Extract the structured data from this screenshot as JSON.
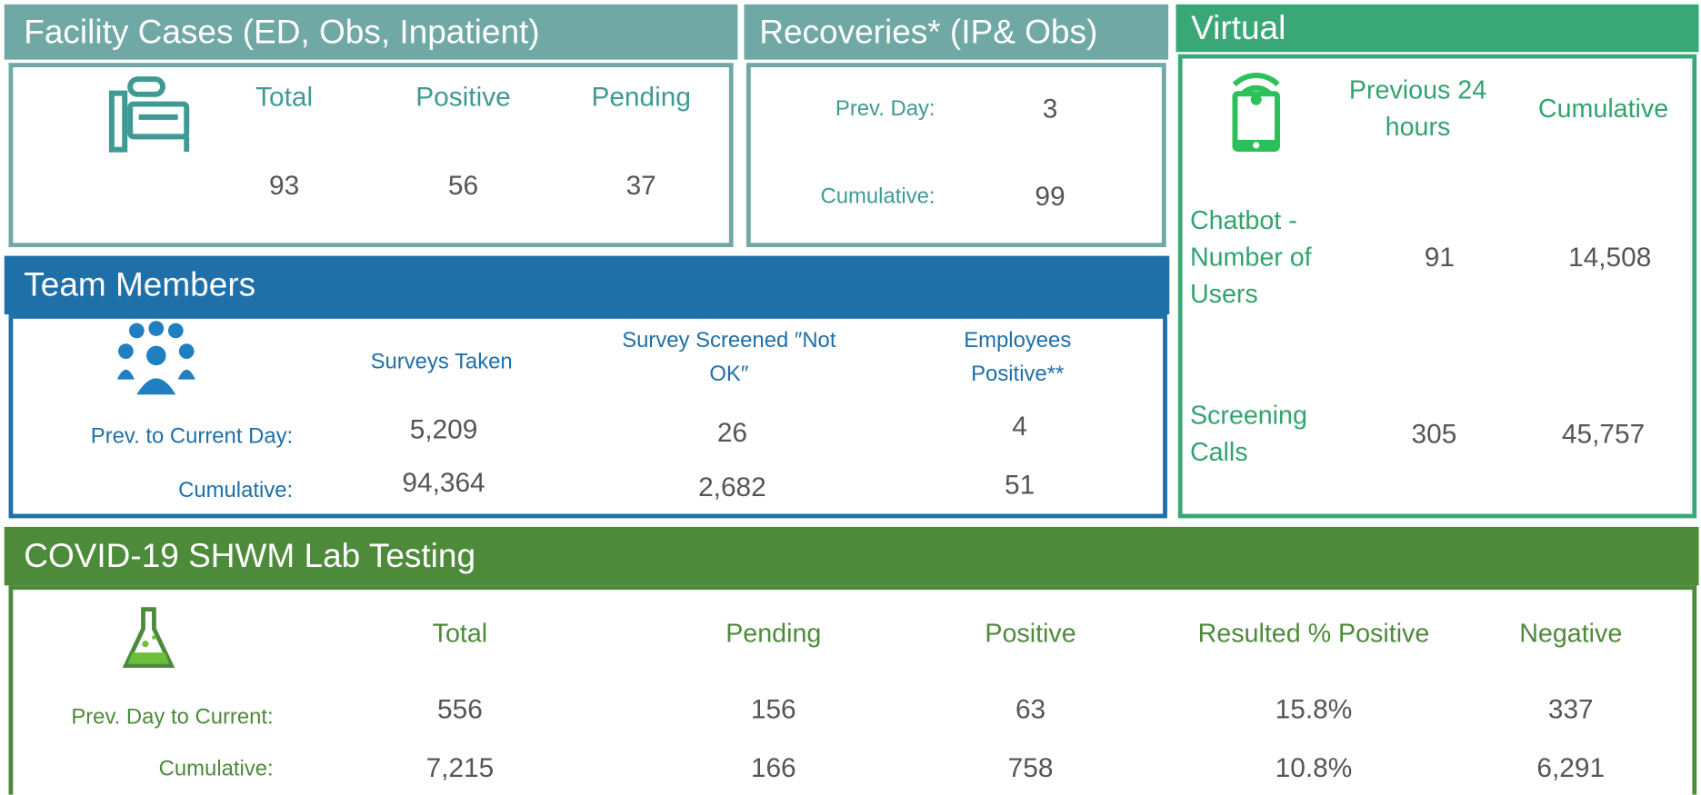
{
  "facility": {
    "title": "Facility Cases (ED, Obs, Inpatient)",
    "headers": [
      "Total",
      "Positive",
      "Pending"
    ],
    "values": [
      "93",
      "56",
      "37"
    ]
  },
  "recoveries": {
    "title": "Recoveries* (IP& Obs)",
    "rows": [
      {
        "label": "Prev. Day:",
        "value": "3"
      },
      {
        "label": "Cumulative:",
        "value": "99"
      }
    ]
  },
  "virtual": {
    "title": "Virtual",
    "headers": [
      "Previous 24 hours",
      "Cumulative"
    ],
    "rows": [
      {
        "label": "Chatbot - Number of Users",
        "values": [
          "91",
          "14,508"
        ]
      },
      {
        "label": "Screening Calls",
        "values": [
          "305",
          "45,757"
        ]
      }
    ]
  },
  "team": {
    "title": "Team Members",
    "headers": [
      "Surveys Taken",
      "Survey Screened ″Not OK″",
      "Employees Positive**"
    ],
    "rows": [
      {
        "label": "Prev. to Current Day:",
        "values": [
          "5,209",
          "26",
          "4"
        ]
      },
      {
        "label": "Cumulative:",
        "values": [
          "94,364",
          "2,682",
          "51"
        ]
      }
    ]
  },
  "lab": {
    "title": "COVID-19 SHWM Lab Testing",
    "headers": [
      "Total",
      "Pending",
      "Positive",
      "Resulted % Positive",
      "Negative"
    ],
    "rows": [
      {
        "label": "Prev. Day to Current:",
        "values": [
          "556",
          "156",
          "63",
          "15.8%",
          "337"
        ]
      },
      {
        "label": "Cumulative:",
        "values": [
          "7,215",
          "166",
          "758",
          "10.8%",
          "6,291"
        ]
      }
    ]
  }
}
